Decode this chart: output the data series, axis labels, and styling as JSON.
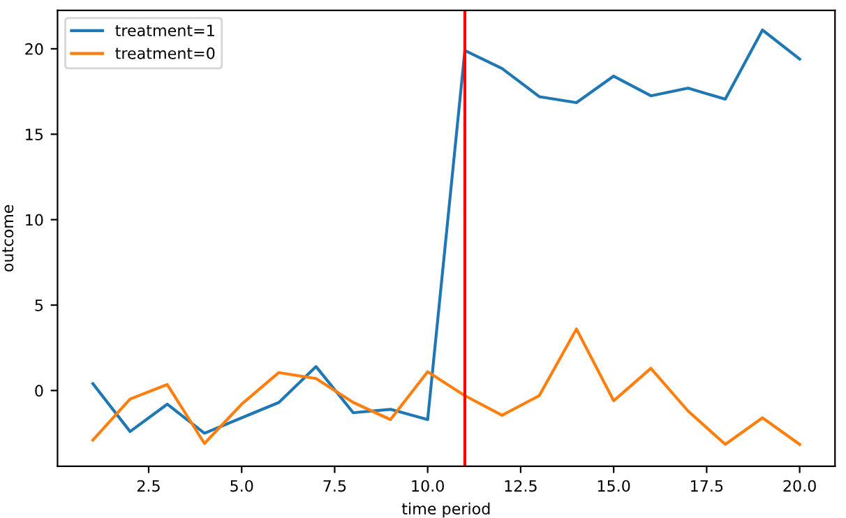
{
  "chart_data": {
    "type": "line",
    "xlabel": "time period",
    "ylabel": "outcome",
    "x": [
      1,
      2,
      3,
      4,
      5,
      6,
      7,
      8,
      9,
      10,
      11,
      12,
      13,
      14,
      15,
      16,
      17,
      18,
      19,
      20
    ],
    "series": [
      {
        "name": "treatment=1",
        "color": "#1f77b4",
        "values": [
          0.4,
          -2.4,
          -0.8,
          -2.5,
          -1.6,
          -0.7,
          1.4,
          -1.3,
          -1.1,
          -1.7,
          19.9,
          18.85,
          17.2,
          16.85,
          18.4,
          17.25,
          17.7,
          17.05,
          21.1,
          19.4
        ]
      },
      {
        "name": "treatment=0",
        "color": "#ff7f0e",
        "values": [
          -2.9,
          -0.5,
          0.35,
          -3.1,
          -0.8,
          1.05,
          0.7,
          -0.7,
          -1.7,
          1.1,
          -0.3,
          -1.45,
          -0.3,
          3.6,
          -0.6,
          1.3,
          -1.2,
          -3.15,
          -1.6,
          -3.15
        ]
      }
    ],
    "xlim": [
      0.05,
      20.95
    ],
    "ylim": [
      -4.43,
      22.25
    ],
    "xticks": [
      {
        "value": 2.5,
        "label": "2.5"
      },
      {
        "value": 5,
        "label": "5.0"
      },
      {
        "value": 7.5,
        "label": "7.5"
      },
      {
        "value": 10,
        "label": "10.0"
      },
      {
        "value": 12.5,
        "label": "12.5"
      },
      {
        "value": 15,
        "label": "15.0"
      },
      {
        "value": 17.5,
        "label": "17.5"
      },
      {
        "value": 20,
        "label": "20.0"
      }
    ],
    "yticks": [
      0,
      5,
      10,
      15,
      20
    ],
    "ref_lines": [
      {
        "axis": "x",
        "value": 11,
        "color": "#ff0000"
      }
    ],
    "legend": "top left",
    "grid": false
  }
}
